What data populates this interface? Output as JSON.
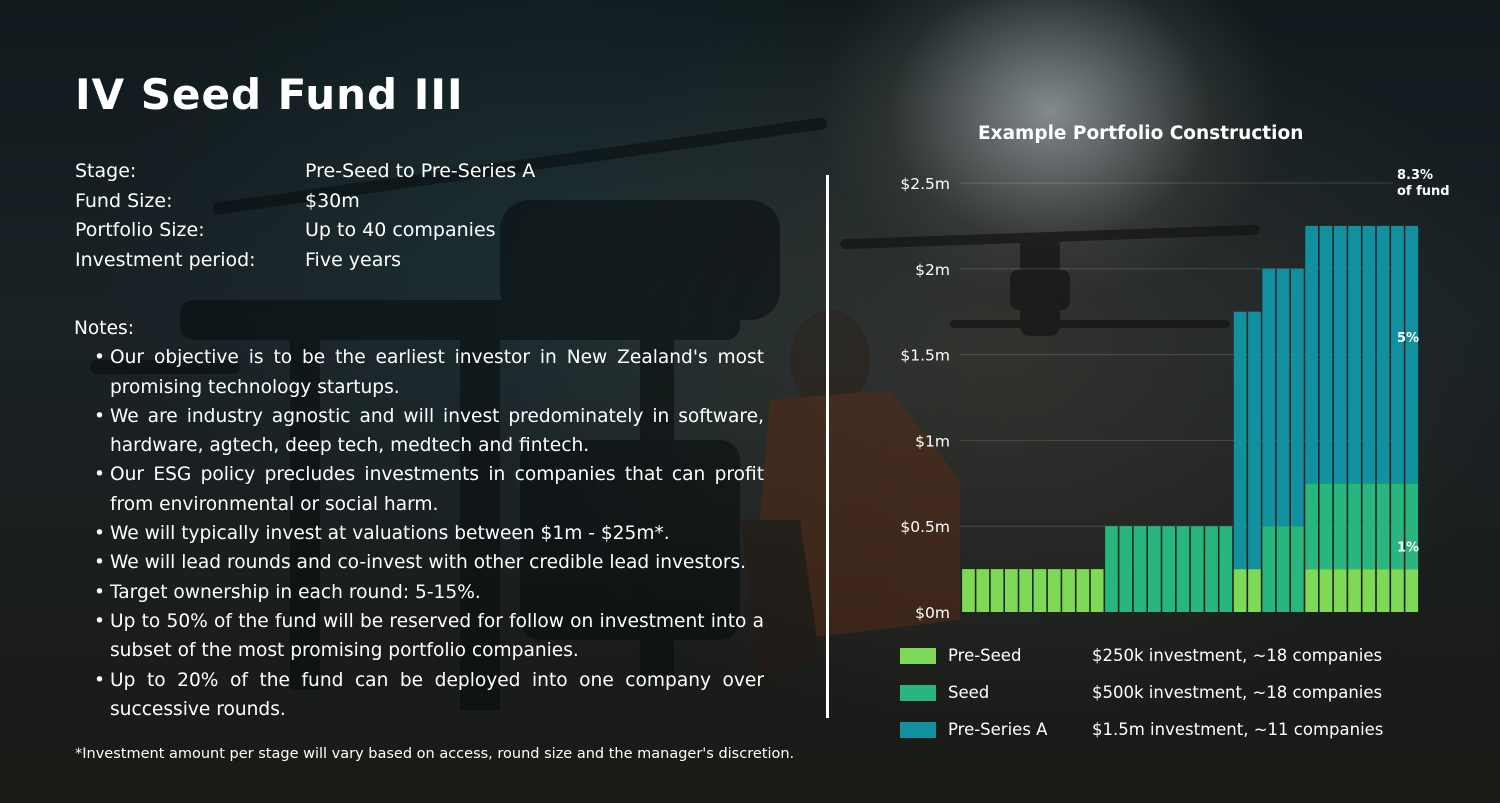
{
  "title": "IV Seed Fund III",
  "info": [
    {
      "key": "Stage:",
      "value": "Pre-Seed to Pre-Series A"
    },
    {
      "key": "Fund Size:",
      "value": "$30m"
    },
    {
      "key": "Portfolio Size:",
      "value": "Up to 40 companies"
    },
    {
      "key": "Investment period:",
      "value": "Five years"
    }
  ],
  "notes_heading": "Notes:",
  "notes": [
    "Our objective is to be the earliest investor in New Zealand's most promising technology startups.",
    "We are industry agnostic and will invest predominately in software, hardware, agtech, deep tech, medtech and fintech.",
    "Our ESG policy precludes investments in companies that can profit from environmental or social harm.",
    "We will typically invest at valuations between $1m - $25m*.",
    "We will lead rounds and co-invest with other credible lead investors.",
    "Target ownership in each round:  5-15%.",
    "Up to 50% of the fund will be reserved for follow on investment into a subset of the most promising portfolio companies.",
    "Up to 20% of the fund can be deployed into one company over successive rounds."
  ],
  "footnote": "*Investment amount per stage will vary based on access, round size and the manager's discretion.",
  "chart_data": {
    "type": "bar",
    "stacked": true,
    "title": "Example Portfolio Construction",
    "ylim": [
      0,
      2.5
    ],
    "yticks": [
      {
        "value": 0,
        "label": "$0m"
      },
      {
        "value": 0.5,
        "label": "$0.5m"
      },
      {
        "value": 1,
        "label": "$1m"
      },
      {
        "value": 1.5,
        "label": "$1.5m"
      },
      {
        "value": 2,
        "label": "$2m"
      },
      {
        "value": 2.5,
        "label": "$2.5m"
      }
    ],
    "grid": true,
    "colors": {
      "Pre-Seed": "#7ed957",
      "Seed": "#27b67d",
      "Pre-Series A": "#11919f"
    },
    "bars": [
      {
        "Pre-Seed": 0.25
      },
      {
        "Pre-Seed": 0.25
      },
      {
        "Pre-Seed": 0.25
      },
      {
        "Pre-Seed": 0.25
      },
      {
        "Pre-Seed": 0.25
      },
      {
        "Pre-Seed": 0.25
      },
      {
        "Pre-Seed": 0.25
      },
      {
        "Pre-Seed": 0.25
      },
      {
        "Pre-Seed": 0.25
      },
      {
        "Pre-Seed": 0.25
      },
      {
        "Seed": 0.5
      },
      {
        "Seed": 0.5
      },
      {
        "Seed": 0.5
      },
      {
        "Seed": 0.5
      },
      {
        "Seed": 0.5
      },
      {
        "Seed": 0.5
      },
      {
        "Seed": 0.5
      },
      {
        "Seed": 0.5
      },
      {
        "Seed": 0.5
      },
      {
        "Pre-Seed": 0.25,
        "Pre-Series A": 1.5
      },
      {
        "Pre-Seed": 0.25,
        "Pre-Series A": 1.5
      },
      {
        "Seed": 0.5,
        "Pre-Series A": 1.5
      },
      {
        "Seed": 0.5,
        "Pre-Series A": 1.5
      },
      {
        "Seed": 0.5,
        "Pre-Series A": 1.5
      },
      {
        "Pre-Seed": 0.25,
        "Seed": 0.5,
        "Pre-Series A": 1.5
      },
      {
        "Pre-Seed": 0.25,
        "Seed": 0.5,
        "Pre-Series A": 1.5
      },
      {
        "Pre-Seed": 0.25,
        "Seed": 0.5,
        "Pre-Series A": 1.5
      },
      {
        "Pre-Seed": 0.25,
        "Seed": 0.5,
        "Pre-Series A": 1.5
      },
      {
        "Pre-Seed": 0.25,
        "Seed": 0.5,
        "Pre-Series A": 1.5
      },
      {
        "Pre-Seed": 0.25,
        "Seed": 0.5,
        "Pre-Series A": 1.5
      },
      {
        "Pre-Seed": 0.25,
        "Seed": 0.5,
        "Pre-Series A": 1.5
      },
      {
        "Pre-Seed": 0.25,
        "Seed": 0.5,
        "Pre-Series A": 1.5
      }
    ],
    "annotations": [
      {
        "value": 2.5,
        "lines": [
          "8.3%",
          "of fund"
        ]
      },
      {
        "value": 1.55,
        "lines": [
          "5%"
        ]
      },
      {
        "value": 0.33,
        "lines": [
          "1%"
        ]
      }
    ],
    "legend": [
      {
        "name": "Pre-Seed",
        "color": "#7ed957",
        "desc": "$250k investment, ~18 companies"
      },
      {
        "name": "Seed",
        "color": "#27b67d",
        "desc": "$500k investment, ~18 companies"
      },
      {
        "name": "Pre-Series A",
        "color": "#11919f",
        "desc": "$1.5m investment, ~11 companies"
      }
    ]
  }
}
